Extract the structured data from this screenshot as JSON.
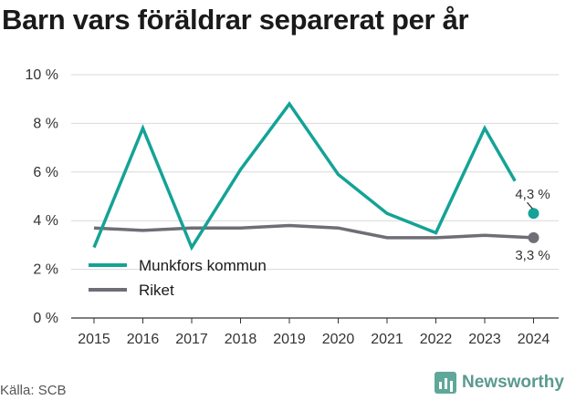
{
  "title": "Barn vars föräldrar separerat per år",
  "source": "Källa: SCB",
  "brand": "Newsworthy",
  "chart_data": {
    "type": "line",
    "categories": [
      "2015",
      "2016",
      "2017",
      "2018",
      "2019",
      "2020",
      "2021",
      "2022",
      "2023",
      "2024"
    ],
    "y_ticks": [
      "0 %",
      "2 %",
      "4 %",
      "6 %",
      "8 %",
      "10 %"
    ],
    "ylim": [
      0,
      10
    ],
    "grid": true,
    "legend_position": "bottom-left",
    "series": [
      {
        "name": "Munkfors kommun",
        "color": "#14a396",
        "values": [
          2.9,
          7.8,
          2.9,
          6.1,
          8.8,
          5.9,
          4.3,
          3.5,
          7.8,
          4.3
        ],
        "last_label": "4,3 %"
      },
      {
        "name": "Riket",
        "color": "#6e6e76",
        "values": [
          3.7,
          3.6,
          3.7,
          3.7,
          3.8,
          3.7,
          3.3,
          3.3,
          3.4,
          3.3
        ],
        "last_label": "3,3 %"
      }
    ]
  }
}
